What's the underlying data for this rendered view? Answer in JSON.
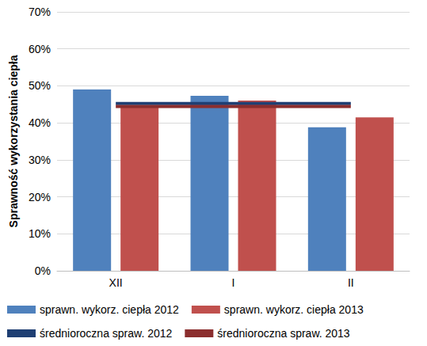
{
  "chart_data": {
    "type": "bar",
    "y_label": "Sprawność wykorzystania ciepła",
    "categories": [
      "XII",
      "I",
      "II"
    ],
    "series": [
      {
        "name": "sprawn. wykorz. ciepła 2012",
        "type": "bar",
        "color": "#4f81bd",
        "values": [
          49.0,
          47.3,
          38.8
        ]
      },
      {
        "name": "sprawn. wykorz. ciepła 2013",
        "type": "bar",
        "color": "#c0504d",
        "values": [
          44.5,
          46.0,
          41.5
        ]
      },
      {
        "name": "średnioroczna spraw. 2012",
        "type": "line",
        "color": "#1f3f73",
        "values": [
          45.2,
          45.2,
          45.2
        ]
      },
      {
        "name": "średnioroczna spraw. 2013",
        "type": "line",
        "color": "#8b2e2e",
        "values": [
          44.4,
          44.4,
          44.4
        ]
      }
    ],
    "ylim": [
      0,
      70
    ],
    "yticks": [
      {
        "value": 0,
        "label": "0%"
      },
      {
        "value": 10,
        "label": "10%"
      },
      {
        "value": 20,
        "label": "20%"
      },
      {
        "value": 30,
        "label": "30%"
      },
      {
        "value": 40,
        "label": "40%"
      },
      {
        "value": 50,
        "label": "50%"
      },
      {
        "value": 60,
        "label": "60%"
      },
      {
        "value": 70,
        "label": "70%"
      }
    ],
    "grid": true,
    "legend": "bottom"
  }
}
